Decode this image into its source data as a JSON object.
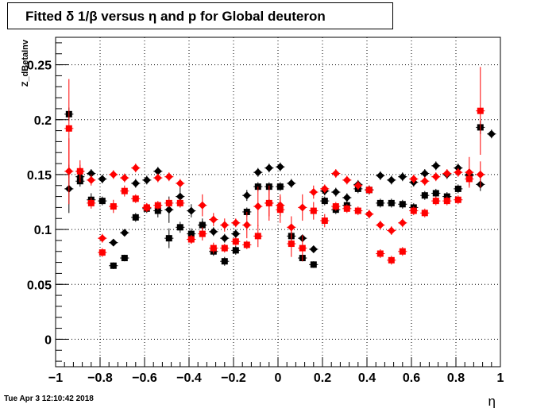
{
  "chart_data": {
    "type": "scatter",
    "title": "Fitted δ 1/β versus η and p for Global deuteron",
    "xlabel": "η",
    "ylabel": "Z_dBetaInv",
    "xlim": [
      -1,
      1
    ],
    "ylim": [
      -0.025,
      0.275
    ],
    "x_ticks": [
      -1,
      -0.8,
      -0.6,
      -0.4,
      -0.2,
      0,
      0.2,
      0.4,
      0.6,
      0.8,
      1
    ],
    "x_tick_labels": [
      "−1",
      "−0.8",
      "−0.6",
      "−0.4",
      "−0.2",
      "0",
      "0.2",
      "0.4",
      "0.6",
      "0.8",
      "1"
    ],
    "y_ticks": [
      0,
      0.05,
      0.1,
      0.15,
      0.2,
      0.25
    ],
    "y_tick_labels": [
      "0",
      "0.05",
      "0.1",
      "0.15",
      "0.2",
      "0.25"
    ],
    "grid": true,
    "series": [
      {
        "color": "#000000",
        "marker": "diamond",
        "points": [
          {
            "x": -0.94,
            "y": 0.137,
            "e": 0.022
          },
          {
            "x": -0.89,
            "y": 0.148,
            "e": 0.006
          },
          {
            "x": -0.84,
            "y": 0.151,
            "e": 0.004
          },
          {
            "x": -0.79,
            "y": 0.146,
            "e": 0.004
          },
          {
            "x": -0.74,
            "y": 0.088,
            "e": 0.003
          },
          {
            "x": -0.69,
            "y": 0.097,
            "e": 0.003
          },
          {
            "x": -0.64,
            "y": 0.142,
            "e": 0.004
          },
          {
            "x": -0.59,
            "y": 0.145,
            "e": 0.004
          },
          {
            "x": -0.54,
            "y": 0.153,
            "e": 0.004
          },
          {
            "x": -0.49,
            "y": 0.118,
            "e": 0.012
          },
          {
            "x": -0.44,
            "y": 0.13,
            "e": 0.01
          },
          {
            "x": -0.39,
            "y": 0.117,
            "e": 0.006
          },
          {
            "x": -0.34,
            "y": 0.104,
            "e": 0.006
          },
          {
            "x": -0.29,
            "y": 0.098,
            "e": 0.004
          },
          {
            "x": -0.24,
            "y": 0.092,
            "e": 0.004
          },
          {
            "x": -0.19,
            "y": 0.096,
            "e": 0.004
          },
          {
            "x": -0.14,
            "y": 0.131,
            "e": 0.005
          },
          {
            "x": -0.09,
            "y": 0.152,
            "e": 0.004
          },
          {
            "x": -0.04,
            "y": 0.156,
            "e": 0.004
          },
          {
            "x": 0.01,
            "y": 0.157,
            "e": 0.004
          },
          {
            "x": 0.06,
            "y": 0.142,
            "e": 0.004
          },
          {
            "x": 0.11,
            "y": 0.092,
            "e": 0.003
          },
          {
            "x": 0.16,
            "y": 0.082,
            "e": 0.003
          },
          {
            "x": 0.21,
            "y": 0.135,
            "e": 0.004
          },
          {
            "x": 0.26,
            "y": 0.134,
            "e": 0.004
          },
          {
            "x": 0.31,
            "y": 0.129,
            "e": 0.004
          },
          {
            "x": 0.36,
            "y": 0.141,
            "e": 0.004
          },
          {
            "x": 0.41,
            "y": 0.136,
            "e": 0.004
          },
          {
            "x": 0.46,
            "y": 0.149,
            "e": 0.004
          },
          {
            "x": 0.51,
            "y": 0.145,
            "e": 0.004
          },
          {
            "x": 0.56,
            "y": 0.148,
            "e": 0.004
          },
          {
            "x": 0.61,
            "y": 0.143,
            "e": 0.004
          },
          {
            "x": 0.66,
            "y": 0.151,
            "e": 0.004
          },
          {
            "x": 0.71,
            "y": 0.158,
            "e": 0.004
          },
          {
            "x": 0.76,
            "y": 0.15,
            "e": 0.004
          },
          {
            "x": 0.81,
            "y": 0.156,
            "e": 0.004
          },
          {
            "x": 0.86,
            "y": 0.15,
            "e": 0.005
          },
          {
            "x": 0.91,
            "y": 0.141,
            "e": 0.006
          },
          {
            "x": 0.96,
            "y": 0.187,
            "e": 0.004
          }
        ]
      },
      {
        "color": "#000000",
        "marker": "square",
        "points": [
          {
            "x": -0.94,
            "y": 0.205,
            "e": 0.006
          },
          {
            "x": -0.89,
            "y": 0.144,
            "e": 0.005
          },
          {
            "x": -0.84,
            "y": 0.127,
            "e": 0.006
          },
          {
            "x": -0.79,
            "y": 0.126,
            "e": 0.004
          },
          {
            "x": -0.74,
            "y": 0.067,
            "e": 0.003
          },
          {
            "x": -0.69,
            "y": 0.074,
            "e": 0.003
          },
          {
            "x": -0.64,
            "y": 0.111,
            "e": 0.004
          },
          {
            "x": -0.59,
            "y": 0.119,
            "e": 0.004
          },
          {
            "x": -0.54,
            "y": 0.117,
            "e": 0.006
          },
          {
            "x": -0.49,
            "y": 0.092,
            "e": 0.009
          },
          {
            "x": -0.44,
            "y": 0.102,
            "e": 0.005
          },
          {
            "x": -0.39,
            "y": 0.096,
            "e": 0.005
          },
          {
            "x": -0.34,
            "y": 0.104,
            "e": 0.004
          },
          {
            "x": -0.29,
            "y": 0.08,
            "e": 0.004
          },
          {
            "x": -0.24,
            "y": 0.071,
            "e": 0.004
          },
          {
            "x": -0.19,
            "y": 0.081,
            "e": 0.004
          },
          {
            "x": -0.14,
            "y": 0.116,
            "e": 0.004
          },
          {
            "x": -0.09,
            "y": 0.139,
            "e": 0.004
          },
          {
            "x": -0.04,
            "y": 0.139,
            "e": 0.004
          },
          {
            "x": 0.01,
            "y": 0.139,
            "e": 0.004
          },
          {
            "x": 0.06,
            "y": 0.094,
            "e": 0.004
          },
          {
            "x": 0.11,
            "y": 0.074,
            "e": 0.003
          },
          {
            "x": 0.16,
            "y": 0.068,
            "e": 0.003
          },
          {
            "x": 0.21,
            "y": 0.126,
            "e": 0.004
          },
          {
            "x": 0.26,
            "y": 0.118,
            "e": 0.004
          },
          {
            "x": 0.31,
            "y": 0.122,
            "e": 0.004
          },
          {
            "x": 0.36,
            "y": 0.137,
            "e": 0.004
          },
          {
            "x": 0.41,
            "y": 0.136,
            "e": 0.004
          },
          {
            "x": 0.46,
            "y": 0.124,
            "e": 0.004
          },
          {
            "x": 0.51,
            "y": 0.124,
            "e": 0.004
          },
          {
            "x": 0.56,
            "y": 0.123,
            "e": 0.004
          },
          {
            "x": 0.61,
            "y": 0.12,
            "e": 0.004
          },
          {
            "x": 0.66,
            "y": 0.131,
            "e": 0.004
          },
          {
            "x": 0.71,
            "y": 0.133,
            "e": 0.004
          },
          {
            "x": 0.76,
            "y": 0.13,
            "e": 0.004
          },
          {
            "x": 0.81,
            "y": 0.137,
            "e": 0.004
          },
          {
            "x": 0.86,
            "y": 0.149,
            "e": 0.005
          },
          {
            "x": 0.91,
            "y": 0.193,
            "e": 0.006
          }
        ]
      },
      {
        "color": "#ff0000",
        "marker": "diamond",
        "points": [
          {
            "x": -0.94,
            "y": 0.153,
            "e": 0.03
          },
          {
            "x": -0.89,
            "y": 0.153,
            "e": 0.006
          },
          {
            "x": -0.84,
            "y": 0.145,
            "e": 0.005
          },
          {
            "x": -0.79,
            "y": 0.092,
            "e": 0.004
          },
          {
            "x": -0.74,
            "y": 0.15,
            "e": 0.004
          },
          {
            "x": -0.69,
            "y": 0.147,
            "e": 0.004
          },
          {
            "x": -0.64,
            "y": 0.156,
            "e": 0.004
          },
          {
            "x": -0.59,
            "y": 0.12,
            "e": 0.004
          },
          {
            "x": -0.54,
            "y": 0.147,
            "e": 0.004
          },
          {
            "x": -0.49,
            "y": 0.148,
            "e": 0.004
          },
          {
            "x": -0.44,
            "y": 0.142,
            "e": 0.004
          },
          {
            "x": -0.39,
            "y": 0.091,
            "e": 0.004
          },
          {
            "x": -0.34,
            "y": 0.122,
            "e": 0.01
          },
          {
            "x": -0.29,
            "y": 0.109,
            "e": 0.006
          },
          {
            "x": -0.24,
            "y": 0.104,
            "e": 0.006
          },
          {
            "x": -0.19,
            "y": 0.106,
            "e": 0.004
          },
          {
            "x": -0.14,
            "y": 0.104,
            "e": 0.012
          },
          {
            "x": -0.09,
            "y": 0.121,
            "e": 0.018
          },
          {
            "x": -0.04,
            "y": 0.124,
            "e": 0.016
          },
          {
            "x": 0.01,
            "y": 0.122,
            "e": 0.01
          },
          {
            "x": 0.06,
            "y": 0.102,
            "e": 0.01
          },
          {
            "x": 0.11,
            "y": 0.12,
            "e": 0.012
          },
          {
            "x": 0.16,
            "y": 0.134,
            "e": 0.006
          },
          {
            "x": 0.21,
            "y": 0.137,
            "e": 0.004
          },
          {
            "x": 0.26,
            "y": 0.151,
            "e": 0.004
          },
          {
            "x": 0.31,
            "y": 0.145,
            "e": 0.004
          },
          {
            "x": 0.36,
            "y": 0.14,
            "e": 0.004
          },
          {
            "x": 0.41,
            "y": 0.114,
            "e": 0.004
          },
          {
            "x": 0.46,
            "y": 0.104,
            "e": 0.004
          },
          {
            "x": 0.51,
            "y": 0.099,
            "e": 0.004
          },
          {
            "x": 0.56,
            "y": 0.106,
            "e": 0.004
          },
          {
            "x": 0.61,
            "y": 0.146,
            "e": 0.004
          },
          {
            "x": 0.66,
            "y": 0.144,
            "e": 0.004
          },
          {
            "x": 0.71,
            "y": 0.148,
            "e": 0.004
          },
          {
            "x": 0.76,
            "y": 0.151,
            "e": 0.004
          },
          {
            "x": 0.81,
            "y": 0.152,
            "e": 0.004
          },
          {
            "x": 0.86,
            "y": 0.152,
            "e": 0.014
          },
          {
            "x": 0.91,
            "y": 0.15,
            "e": 0.012
          }
        ]
      },
      {
        "color": "#ff0000",
        "marker": "square",
        "points": [
          {
            "x": -0.94,
            "y": 0.192,
            "e": 0.045
          },
          {
            "x": -0.89,
            "y": 0.153,
            "e": 0.01
          },
          {
            "x": -0.84,
            "y": 0.124,
            "e": 0.005
          },
          {
            "x": -0.79,
            "y": 0.079,
            "e": 0.004
          },
          {
            "x": -0.74,
            "y": 0.121,
            "e": 0.006
          },
          {
            "x": -0.69,
            "y": 0.135,
            "e": 0.005
          },
          {
            "x": -0.64,
            "y": 0.128,
            "e": 0.004
          },
          {
            "x": -0.59,
            "y": 0.12,
            "e": 0.004
          },
          {
            "x": -0.54,
            "y": 0.122,
            "e": 0.004
          },
          {
            "x": -0.49,
            "y": 0.124,
            "e": 0.004
          },
          {
            "x": -0.44,
            "y": 0.124,
            "e": 0.004
          },
          {
            "x": -0.39,
            "y": 0.091,
            "e": 0.004
          },
          {
            "x": -0.34,
            "y": 0.096,
            "e": 0.006
          },
          {
            "x": -0.29,
            "y": 0.083,
            "e": 0.005
          },
          {
            "x": -0.24,
            "y": 0.083,
            "e": 0.004
          },
          {
            "x": -0.19,
            "y": 0.089,
            "e": 0.004
          },
          {
            "x": -0.14,
            "y": 0.086,
            "e": 0.004
          },
          {
            "x": -0.09,
            "y": 0.094,
            "e": 0.01
          },
          {
            "x": -0.04,
            "y": 0.124,
            "e": 0.012
          },
          {
            "x": 0.01,
            "y": 0.118,
            "e": 0.012
          },
          {
            "x": 0.06,
            "y": 0.087,
            "e": 0.012
          },
          {
            "x": 0.11,
            "y": 0.083,
            "e": 0.012
          },
          {
            "x": 0.16,
            "y": 0.117,
            "e": 0.008
          },
          {
            "x": 0.21,
            "y": 0.108,
            "e": 0.006
          },
          {
            "x": 0.26,
            "y": 0.121,
            "e": 0.004
          },
          {
            "x": 0.31,
            "y": 0.119,
            "e": 0.004
          },
          {
            "x": 0.36,
            "y": 0.117,
            "e": 0.004
          },
          {
            "x": 0.41,
            "y": 0.136,
            "e": 0.004
          },
          {
            "x": 0.46,
            "y": 0.078,
            "e": 0.004
          },
          {
            "x": 0.51,
            "y": 0.072,
            "e": 0.004
          },
          {
            "x": 0.56,
            "y": 0.08,
            "e": 0.004
          },
          {
            "x": 0.61,
            "y": 0.117,
            "e": 0.004
          },
          {
            "x": 0.66,
            "y": 0.115,
            "e": 0.004
          },
          {
            "x": 0.71,
            "y": 0.126,
            "e": 0.004
          },
          {
            "x": 0.76,
            "y": 0.126,
            "e": 0.004
          },
          {
            "x": 0.81,
            "y": 0.127,
            "e": 0.004
          },
          {
            "x": 0.86,
            "y": 0.146,
            "e": 0.006
          },
          {
            "x": 0.91,
            "y": 0.208,
            "e": 0.04
          }
        ]
      }
    ]
  },
  "footer": {
    "timestamp": "Tue Apr  3 12:10:42 2018"
  }
}
